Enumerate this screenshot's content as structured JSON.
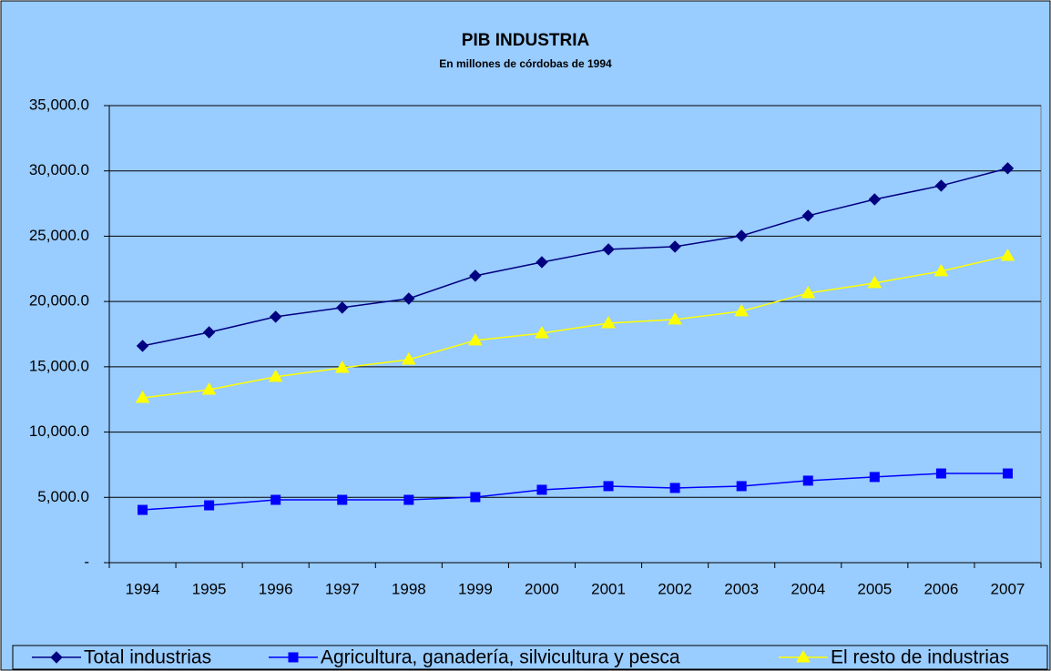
{
  "chart_data": {
    "type": "line",
    "title": "PIB INDUSTRIA",
    "subtitle": "En millones de córdobas de 1994",
    "categories": [
      "1994",
      "1995",
      "1996",
      "1997",
      "1998",
      "1999",
      "2000",
      "2001",
      "2002",
      "2003",
      "2004",
      "2005",
      "2006",
      "2007"
    ],
    "series": [
      {
        "name": "Total industrias",
        "color": "#000080",
        "marker": "diamond",
        "values": [
          16600,
          17640,
          18830,
          19530,
          20220,
          21970,
          23010,
          23990,
          24200,
          25030,
          26570,
          27820,
          28870,
          30200
        ]
      },
      {
        "name": "Agricultura, ganadería, silvicultura y pesca",
        "color": "#0000ff",
        "marker": "square",
        "values": [
          4040,
          4390,
          4810,
          4810,
          4810,
          5020,
          5580,
          5860,
          5720,
          5860,
          6280,
          6560,
          6830,
          6830
        ]
      },
      {
        "name": "El resto de industrias",
        "color": "#ffff00",
        "marker": "triangle",
        "values": [
          12620,
          13250,
          14230,
          14920,
          15550,
          17020,
          17570,
          18340,
          18620,
          19250,
          20640,
          21410,
          22320,
          23500
        ]
      }
    ],
    "ylim": [
      0,
      35000
    ],
    "yticks": [
      {
        "value": 0,
        "label": "-"
      },
      {
        "value": 5000,
        "label": "5,000.0"
      },
      {
        "value": 10000,
        "label": "10,000.0"
      },
      {
        "value": 15000,
        "label": "15,000.0"
      },
      {
        "value": 20000,
        "label": "20,000.0"
      },
      {
        "value": 25000,
        "label": "25,000.0"
      },
      {
        "value": 30000,
        "label": "30,000.0"
      },
      {
        "value": 35000,
        "label": "35,000.0"
      }
    ],
    "grid": true,
    "legend": "bottom"
  }
}
